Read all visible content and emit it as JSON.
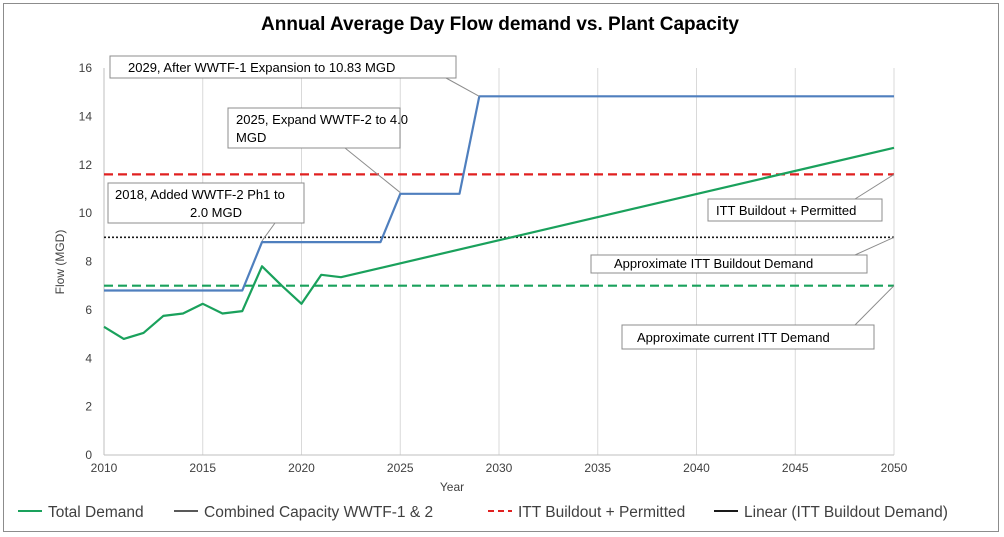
{
  "chart_data": {
    "type": "line",
    "title": "Annual Average Day Flow demand vs. Plant Capacity",
    "xlabel": "Year",
    "ylabel": "Flow (MGD)",
    "xlim": [
      2010,
      2050
    ],
    "ylim": [
      0,
      16
    ],
    "x_ticks": [
      "2010",
      "2015",
      "2020",
      "2025",
      "2030",
      "2035",
      "2040",
      "2045",
      "2050"
    ],
    "y_ticks": [
      "0",
      "2",
      "4",
      "6",
      "8",
      "10",
      "12",
      "14",
      "16"
    ],
    "grid": "vertical",
    "legend_position": "bottom",
    "series": [
      {
        "name": "Total Demand",
        "color": "#1aa15c",
        "style": "solid",
        "points": [
          [
            2010,
            5.3
          ],
          [
            2011,
            4.8
          ],
          [
            2012,
            5.05
          ],
          [
            2013,
            5.75
          ],
          [
            2014,
            5.85
          ],
          [
            2015,
            6.25
          ],
          [
            2016,
            5.85
          ],
          [
            2017,
            5.95
          ],
          [
            2018,
            7.8
          ],
          [
            2019,
            7.0
          ],
          [
            2020,
            6.25
          ],
          [
            2021,
            7.45
          ],
          [
            2022,
            7.35
          ],
          [
            2050,
            12.7
          ]
        ]
      },
      {
        "name": "Combined Capacity WWTF-1 & 2",
        "color": "#4f7fbe",
        "style": "solid",
        "points": [
          [
            2010,
            6.8
          ],
          [
            2017,
            6.8
          ],
          [
            2018,
            8.8
          ],
          [
            2024,
            8.8
          ],
          [
            2025,
            10.8
          ],
          [
            2028,
            10.8
          ],
          [
            2029,
            14.83
          ],
          [
            2050,
            14.83
          ]
        ]
      },
      {
        "name": "ITT Buildout + Permitted",
        "color": "#e02020",
        "style": "dashed",
        "points": [
          [
            2010,
            11.6
          ],
          [
            2050,
            11.6
          ]
        ]
      },
      {
        "name": "Linear (ITT Buildout Demand)",
        "color": "#1a1a1a",
        "style": "dotted",
        "points": [
          [
            2010,
            9.0
          ],
          [
            2050,
            9.0
          ]
        ]
      },
      {
        "name": "Approximate current ITT Demand",
        "color": "#1aa15c",
        "style": "dashed",
        "in_legend": false,
        "points": [
          [
            2010,
            7.0
          ],
          [
            2050,
            7.0
          ]
        ]
      }
    ],
    "annotations": [
      {
        "text": "2029, After    WWTF-1 Expansion to 10.83 MGD"
      },
      {
        "text": "2025, Expand WWTF-2 to 4.0",
        "text2": "MGD"
      },
      {
        "text": "2018, Added WWTF-2 Ph1 to",
        "text2": "2.0 MGD"
      },
      {
        "text": "ITT Buildout + Permitted"
      },
      {
        "text": "Approximate ITT Buildout Demand"
      },
      {
        "text": "Approximate current ITT Demand"
      }
    ]
  }
}
